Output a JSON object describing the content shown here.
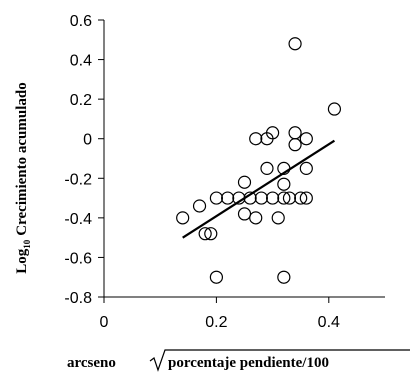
{
  "chart_data": {
    "type": "scatter",
    "xlim": [
      0,
      0.5
    ],
    "ylim": [
      -0.8,
      0.6
    ],
    "x_ticks": [
      0,
      0.2,
      0.4
    ],
    "x_tick_labels": [
      "0",
      "0.2",
      "0.4"
    ],
    "y_ticks": [
      -0.8,
      -0.6,
      -0.4,
      -0.2,
      0,
      0.2,
      0.4,
      0.6
    ],
    "y_tick_labels": [
      "-0.8",
      "-0.6",
      "-0.4",
      "-0.2",
      "0",
      "0.2",
      "0.4",
      "0.6"
    ],
    "ylabel_prefix": "Log",
    "ylabel_subscript": "10",
    "ylabel_rest": "Crecimiento acumulado",
    "xlabel_prefix": "arcseno",
    "xlabel_radicand": "porcentaje pendiente/100",
    "grid": false,
    "marker": "open-circle",
    "trendline": {
      "x": [
        0.14,
        0.41
      ],
      "y": [
        -0.5,
        -0.01
      ]
    },
    "points": [
      {
        "x": 0.14,
        "y": -0.4
      },
      {
        "x": 0.17,
        "y": -0.34
      },
      {
        "x": 0.18,
        "y": -0.48
      },
      {
        "x": 0.19,
        "y": -0.48
      },
      {
        "x": 0.2,
        "y": -0.3
      },
      {
        "x": 0.2,
        "y": -0.7
      },
      {
        "x": 0.22,
        "y": -0.3
      },
      {
        "x": 0.24,
        "y": -0.3
      },
      {
        "x": 0.25,
        "y": -0.22
      },
      {
        "x": 0.25,
        "y": -0.38
      },
      {
        "x": 0.26,
        "y": -0.3
      },
      {
        "x": 0.27,
        "y": -0.4
      },
      {
        "x": 0.27,
        "y": 0.0
      },
      {
        "x": 0.28,
        "y": -0.3
      },
      {
        "x": 0.29,
        "y": -0.15
      },
      {
        "x": 0.29,
        "y": 0.0
      },
      {
        "x": 0.3,
        "y": 0.03
      },
      {
        "x": 0.3,
        "y": -0.3
      },
      {
        "x": 0.31,
        "y": -0.4
      },
      {
        "x": 0.32,
        "y": -0.3
      },
      {
        "x": 0.32,
        "y": -0.23
      },
      {
        "x": 0.32,
        "y": -0.15
      },
      {
        "x": 0.32,
        "y": -0.7
      },
      {
        "x": 0.33,
        "y": -0.3
      },
      {
        "x": 0.34,
        "y": 0.48
      },
      {
        "x": 0.34,
        "y": 0.03
      },
      {
        "x": 0.34,
        "y": -0.03
      },
      {
        "x": 0.35,
        "y": -0.3
      },
      {
        "x": 0.36,
        "y": -0.3
      },
      {
        "x": 0.36,
        "y": 0.0
      },
      {
        "x": 0.36,
        "y": -0.15
      },
      {
        "x": 0.41,
        "y": 0.15
      }
    ]
  }
}
